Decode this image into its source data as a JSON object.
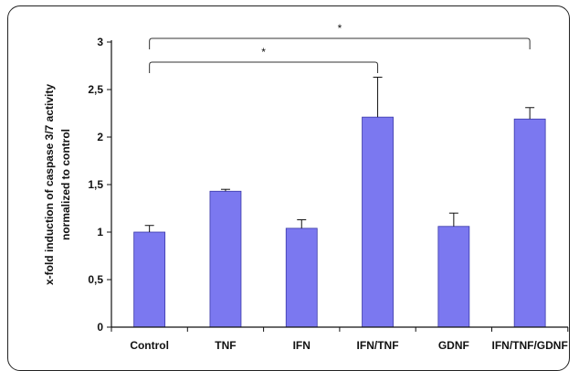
{
  "chart_data": {
    "type": "bar",
    "categories": [
      "Control",
      "TNF",
      "IFN",
      "IFN/TNF",
      "GDNF",
      "IFN/TNF/GDNF"
    ],
    "values": [
      1.0,
      1.43,
      1.04,
      2.21,
      1.06,
      2.19
    ],
    "errors": [
      0.07,
      0.02,
      0.09,
      0.42,
      0.14,
      0.12
    ],
    "title": "",
    "ylabel_lines": [
      "x-fold induction of caspase 3/7 activity",
      "normalized to control"
    ],
    "xlabel": "",
    "ylim": [
      0,
      3
    ],
    "yticks": [
      0,
      0.5,
      1,
      1.5,
      2,
      2.5,
      3
    ],
    "ytick_labels": [
      "0",
      "0,5",
      "1",
      "1,5",
      "2",
      "2,5",
      "3"
    ],
    "bar_color": "#7b78f0",
    "grid": false,
    "significance": [
      {
        "from": "Control",
        "to": "IFN/TNF",
        "label": "*"
      },
      {
        "from": "Control",
        "to": "IFN/TNF/GDNF",
        "label": "*"
      }
    ]
  }
}
